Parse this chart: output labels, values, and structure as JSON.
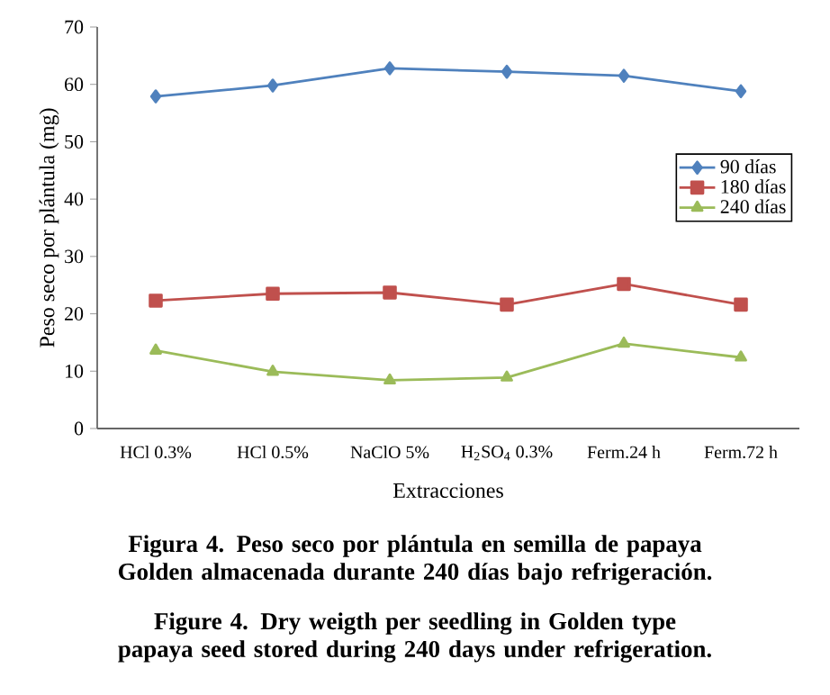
{
  "chart_data": {
    "type": "line",
    "xlabel": "Extracciones",
    "ylabel": "Peso seco por plántula (mg)",
    "categories": [
      "HCl 0.3%",
      "HCl 0.5%",
      "NaClO 5%",
      "H$_{2}$SO$_{4}$ 0.3%",
      "Ferm.24 h",
      "Ferm.72 h"
    ],
    "series": [
      {
        "name": "90 días",
        "color": "#4f81bd",
        "marker": "diamond",
        "values": [
          57.9,
          59.8,
          62.8,
          62.2,
          61.5,
          58.8
        ]
      },
      {
        "name": "180 días",
        "color": "#c0504d",
        "marker": "square",
        "values": [
          22.3,
          23.5,
          23.7,
          21.6,
          25.2,
          21.6
        ]
      },
      {
        "name": "240 días",
        "color": "#9bbb59",
        "marker": "triangle",
        "values": [
          13.6,
          9.9,
          8.4,
          8.9,
          14.8,
          12.4
        ]
      }
    ],
    "ylim": [
      0,
      70
    ],
    "yticks": [
      0,
      10,
      20,
      30,
      40,
      50,
      60,
      70
    ],
    "grid": false,
    "legend": "right",
    "line_style": "solid",
    "annotations": [
      "Figura 4. Peso seco por plántula en semilla de papaya Golden almacenada durante 240 días bajo refrigeración.",
      "Figure 4. Dry weigth per seedling in Golden type papaya seed stored during 240 days under refrigeration."
    ]
  }
}
